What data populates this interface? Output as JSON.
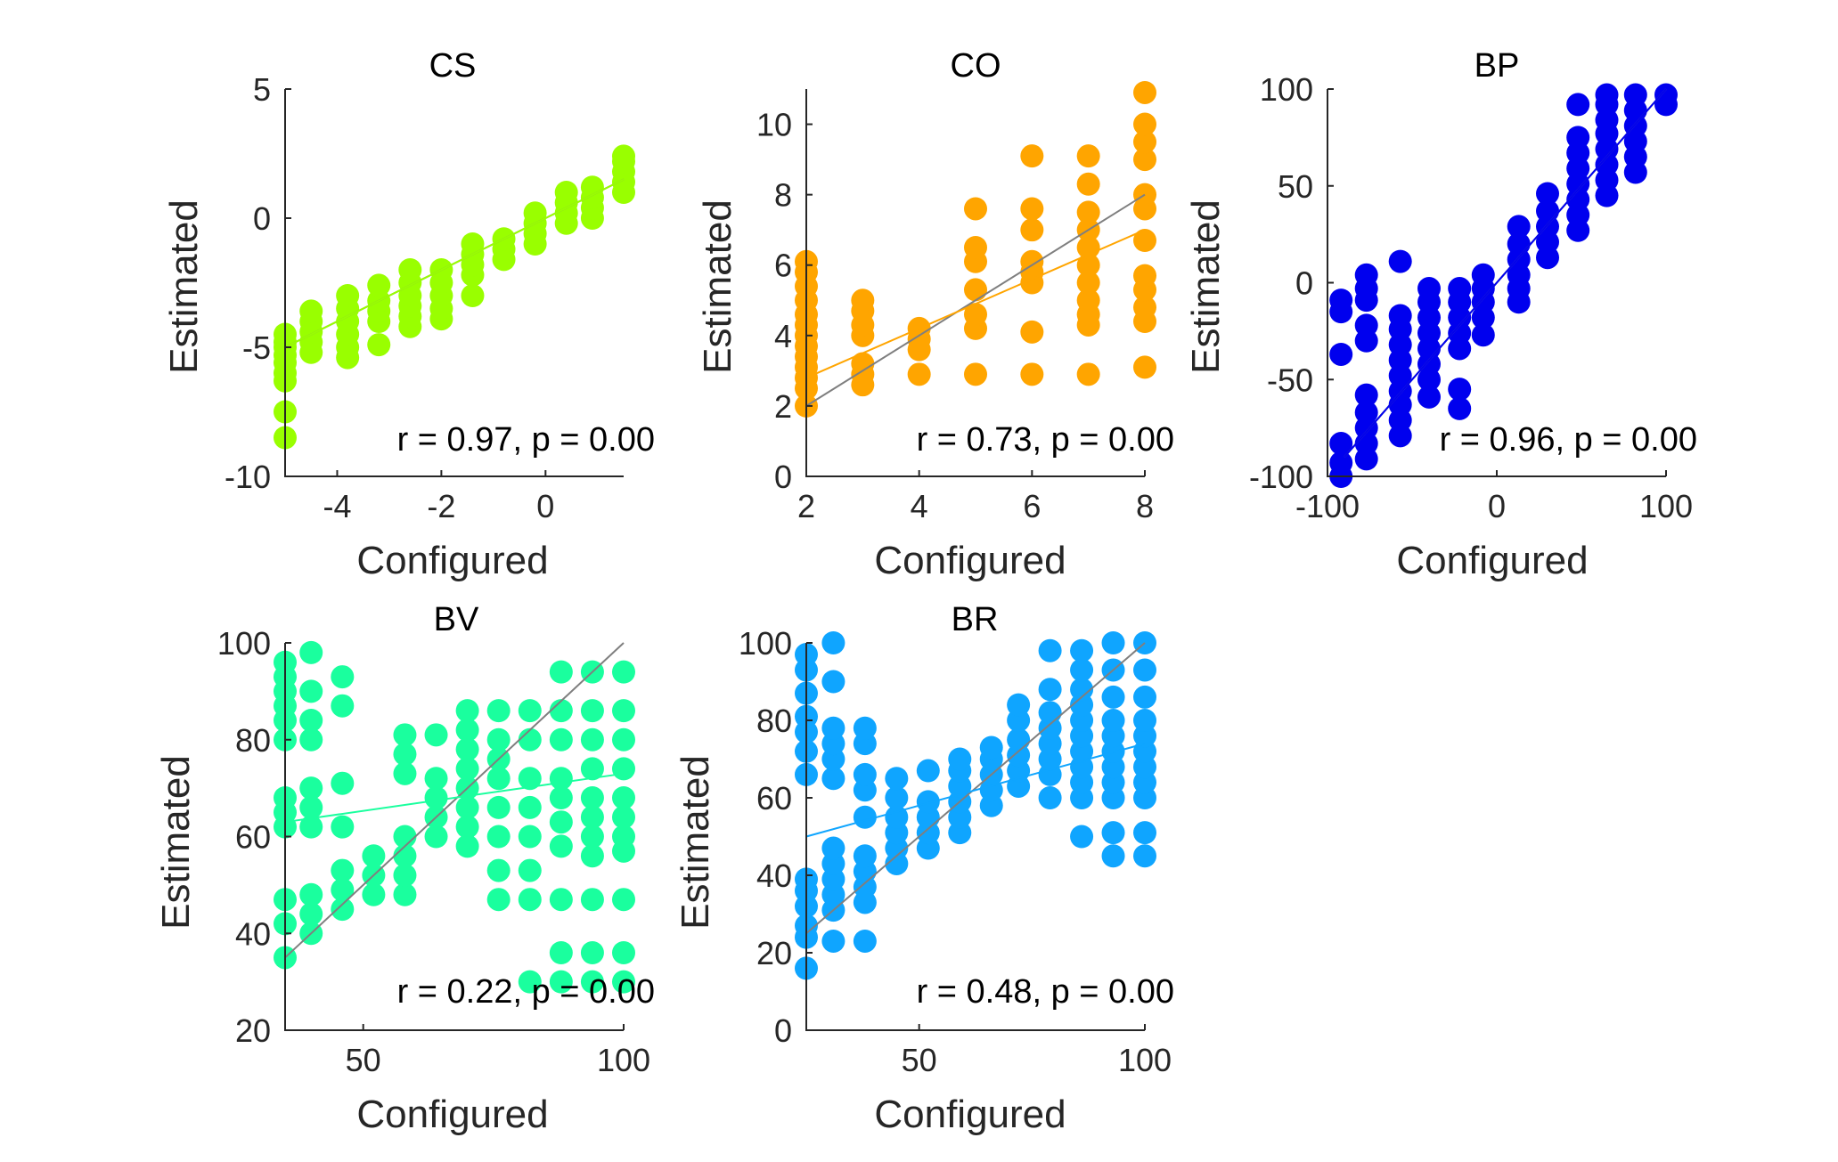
{
  "chart_data": [
    {
      "type": "scatter",
      "title": "CS",
      "xlabel": "Configured",
      "ylabel": "Estimated",
      "annotation": "r = 0.97, p = 0.00",
      "color": "#99ff00",
      "xlim": [
        -5,
        1.5
      ],
      "ylim": [
        -10,
        5
      ],
      "xticks": [
        -4,
        -2,
        0
      ],
      "yticks": [
        -10,
        -5,
        0,
        5
      ],
      "xtick_labels": [
        "-4",
        "-2",
        "0"
      ],
      "ytick_labels": [
        "-10",
        "-5",
        "0",
        "5"
      ],
      "identity_line": [
        [
          -5,
          -5
        ],
        [
          1.5,
          1.5
        ]
      ],
      "fit_line": [
        [
          -5,
          -5
        ],
        [
          1.5,
          1.5
        ]
      ],
      "groups": [
        {
          "x": -5,
          "y": [
            -6.3,
            -6,
            -5.6,
            -5.3,
            -5,
            -4.8,
            -4.5,
            -7.5,
            -8.5
          ]
        },
        {
          "x": -4.5,
          "y": [
            -5.2,
            -4.8,
            -4.4,
            -4,
            -3.6
          ]
        },
        {
          "x": -3.8,
          "y": [
            -5.4,
            -5,
            -4.5,
            -4,
            -3.5,
            -3
          ]
        },
        {
          "x": -3.2,
          "y": [
            -4.9,
            -4,
            -3.6,
            -3.2,
            -2.6
          ]
        },
        {
          "x": -2.6,
          "y": [
            -4.2,
            -3.8,
            -3.4,
            -3,
            -2.5,
            -2
          ]
        },
        {
          "x": -2,
          "y": [
            -3.9,
            -3.5,
            -3,
            -2.5,
            -2
          ]
        },
        {
          "x": -1.4,
          "y": [
            -3,
            -2.2,
            -1.8,
            -1.4,
            -1
          ]
        },
        {
          "x": -0.8,
          "y": [
            -1.6,
            -1.2,
            -0.8
          ]
        },
        {
          "x": -0.2,
          "y": [
            -1,
            -0.6,
            -0.2,
            0.2
          ]
        },
        {
          "x": 0.4,
          "y": [
            -0.2,
            0.2,
            0.6,
            1
          ]
        },
        {
          "x": 0.9,
          "y": [
            0,
            0.4,
            0.8,
            1.2
          ]
        },
        {
          "x": 1.5,
          "y": [
            1,
            1.4,
            1.8,
            2.2,
            2.4
          ]
        }
      ]
    },
    {
      "type": "scatter",
      "title": "CO",
      "xlabel": "Configured",
      "ylabel": "Estimated",
      "annotation": "r = 0.73, p = 0.00",
      "color": "#ffa500",
      "xlim": [
        2,
        8
      ],
      "ylim": [
        0,
        11
      ],
      "xticks": [
        2,
        4,
        6,
        8
      ],
      "yticks": [
        0,
        2,
        4,
        6,
        8,
        10
      ],
      "xtick_labels": [
        "2",
        "4",
        "6",
        "8"
      ],
      "ytick_labels": [
        "0",
        "2",
        "4",
        "6",
        "8",
        "10"
      ],
      "identity_line": [
        [
          2,
          2
        ],
        [
          8,
          8
        ]
      ],
      "fit_line": [
        [
          2,
          2.8
        ],
        [
          8,
          7
        ]
      ],
      "groups": [
        {
          "x": 2,
          "y": [
            2,
            2.5,
            2.8,
            3.1,
            3.4,
            3.7,
            4,
            4.3,
            4.6,
            5,
            5.4,
            5.8,
            6.1
          ]
        },
        {
          "x": 3,
          "y": [
            2.6,
            2.9,
            3.2,
            4,
            4.3,
            4.7,
            5
          ]
        },
        {
          "x": 4,
          "y": [
            2.9,
            3.6,
            3.9,
            4.2
          ]
        },
        {
          "x": 5,
          "y": [
            2.9,
            4.2,
            4.6,
            5.3,
            6.1,
            6.5,
            7.6
          ]
        },
        {
          "x": 6,
          "y": [
            2.9,
            4.1,
            5.5,
            5.8,
            6.1,
            7,
            7.6,
            9.1
          ]
        },
        {
          "x": 7,
          "y": [
            2.9,
            4.3,
            4.6,
            5,
            5.5,
            6,
            6.5,
            7,
            7.5,
            8.3,
            9.1
          ]
        },
        {
          "x": 8,
          "y": [
            3.1,
            4.4,
            4.8,
            5.3,
            5.7,
            6.7,
            7.6,
            8,
            9,
            9.5,
            10,
            10.9
          ]
        }
      ]
    },
    {
      "type": "scatter",
      "title": "BP",
      "xlabel": "Configured",
      "ylabel": "",
      "annotation": "r = 0.96, p = 0.00",
      "color": "#0000ee",
      "xlim": [
        -100,
        100
      ],
      "ylim": [
        -100,
        100
      ],
      "xticks": [
        -100,
        0,
        100
      ],
      "yticks": [
        -100,
        -50,
        0,
        50,
        100
      ],
      "xtick_labels": [
        "-100",
        "0",
        "100"
      ],
      "ytick_labels": [
        "-100",
        "-50",
        "0",
        "50",
        "100"
      ],
      "identity_line": [
        [
          -90,
          -90
        ],
        [
          100,
          100
        ]
      ],
      "fit_line": [
        [
          -90,
          -90
        ],
        [
          100,
          100
        ]
      ],
      "groups": [
        {
          "x": -92,
          "y": [
            -100,
            -93,
            -83,
            -37,
            -15,
            -9
          ]
        },
        {
          "x": -77,
          "y": [
            -91,
            -83,
            -75,
            -67,
            -58,
            -30,
            -22,
            -9,
            -3,
            4
          ]
        },
        {
          "x": -57,
          "y": [
            -79,
            -71,
            -63,
            -56,
            -48,
            -40,
            -32,
            -24,
            -17,
            11
          ]
        },
        {
          "x": -40,
          "y": [
            -59,
            -50,
            -42,
            -34,
            -26,
            -18,
            -10,
            -3
          ]
        },
        {
          "x": -22,
          "y": [
            -65,
            -55,
            -34,
            -26,
            -18,
            -10,
            -3
          ]
        },
        {
          "x": -8,
          "y": [
            -27,
            -18,
            -10,
            -3,
            4
          ]
        },
        {
          "x": 13,
          "y": [
            -10,
            -3,
            4,
            12,
            20,
            29
          ]
        },
        {
          "x": 30,
          "y": [
            13,
            21,
            29,
            37,
            46
          ]
        },
        {
          "x": 48,
          "y": [
            27,
            35,
            43,
            51,
            59,
            67,
            75,
            92
          ]
        },
        {
          "x": 65,
          "y": [
            45,
            53,
            61,
            69,
            77,
            84,
            92,
            97
          ]
        },
        {
          "x": 82,
          "y": [
            57,
            65,
            73,
            81,
            89,
            97
          ]
        },
        {
          "x": 100,
          "y": [
            92,
            97
          ]
        }
      ]
    },
    {
      "type": "scatter",
      "title": "BV",
      "xlabel": "Configured",
      "ylabel": "Estimated",
      "annotation": "r = 0.22, p = 0.00",
      "color": "#1aff9e",
      "xlim": [
        35,
        100
      ],
      "ylim": [
        20,
        100
      ],
      "xticks": [
        50,
        100
      ],
      "yticks": [
        20,
        40,
        60,
        80,
        100
      ],
      "xtick_labels": [
        "50",
        "100"
      ],
      "ytick_labels": [
        "20",
        "40",
        "60",
        "80",
        "100"
      ],
      "identity_line": [
        [
          35,
          35
        ],
        [
          100,
          100
        ]
      ],
      "fit_line": [
        [
          35,
          63
        ],
        [
          100,
          73
        ]
      ],
      "groups": [
        {
          "x": 35,
          "y": [
            35,
            42,
            47,
            62,
            65,
            68,
            80,
            84,
            87,
            90,
            93,
            96
          ]
        },
        {
          "x": 40,
          "y": [
            40,
            44,
            48,
            62,
            66,
            70,
            80,
            84,
            90,
            98
          ]
        },
        {
          "x": 46,
          "y": [
            45,
            49,
            53,
            62,
            71,
            87,
            93
          ]
        },
        {
          "x": 52,
          "y": [
            48,
            52,
            56
          ]
        },
        {
          "x": 58,
          "y": [
            48,
            52,
            56,
            60,
            73,
            77,
            81
          ]
        },
        {
          "x": 64,
          "y": [
            60,
            64,
            68,
            72,
            81
          ]
        },
        {
          "x": 70,
          "y": [
            58,
            62,
            66,
            70,
            74,
            78,
            82,
            86
          ]
        },
        {
          "x": 76,
          "y": [
            47,
            53,
            60,
            66,
            72,
            76,
            80,
            86
          ]
        },
        {
          "x": 82,
          "y": [
            30,
            47,
            53,
            60,
            66,
            72,
            80,
            86
          ]
        },
        {
          "x": 88,
          "y": [
            30,
            36,
            47,
            58,
            63,
            68,
            72,
            80,
            86,
            94
          ]
        },
        {
          "x": 94,
          "y": [
            30,
            36,
            47,
            56,
            60,
            64,
            68,
            74,
            80,
            86,
            94
          ]
        },
        {
          "x": 100,
          "y": [
            30,
            36,
            47,
            57,
            60,
            64,
            68,
            74,
            80,
            86,
            94
          ]
        }
      ]
    },
    {
      "type": "scatter",
      "title": "BR",
      "xlabel": "Configured",
      "ylabel": "Estimated",
      "annotation": "r = 0.48, p = 0.00",
      "color": "#0fa5ff",
      "xlim": [
        25,
        100
      ],
      "ylim": [
        0,
        100
      ],
      "xticks": [
        50,
        100
      ],
      "yticks": [
        0,
        20,
        40,
        60,
        80,
        100
      ],
      "xtick_labels": [
        "50",
        "100"
      ],
      "ytick_labels": [
        "0",
        "20",
        "40",
        "60",
        "80",
        "100"
      ],
      "identity_line": [
        [
          25,
          25
        ],
        [
          100,
          100
        ]
      ],
      "fit_line": [
        [
          25,
          50
        ],
        [
          100,
          74
        ]
      ],
      "groups": [
        {
          "x": 25,
          "y": [
            16,
            24,
            27,
            32,
            36,
            39,
            66,
            72,
            77,
            81,
            87,
            93,
            97
          ]
        },
        {
          "x": 31,
          "y": [
            23,
            31,
            35,
            39,
            43,
            47,
            65,
            70,
            74,
            78,
            90,
            100
          ]
        },
        {
          "x": 38,
          "y": [
            23,
            33,
            37,
            41,
            45,
            55,
            62,
            66,
            74,
            78
          ]
        },
        {
          "x": 45,
          "y": [
            43,
            47,
            51,
            55,
            60,
            65
          ]
        },
        {
          "x": 52,
          "y": [
            47,
            51,
            55,
            59,
            67
          ]
        },
        {
          "x": 59,
          "y": [
            51,
            55,
            59,
            63,
            67,
            70
          ]
        },
        {
          "x": 66,
          "y": [
            58,
            62,
            66,
            70,
            73
          ]
        },
        {
          "x": 72,
          "y": [
            63,
            67,
            71,
            75,
            80,
            84
          ]
        },
        {
          "x": 79,
          "y": [
            60,
            66,
            70,
            74,
            78,
            82,
            88,
            98
          ]
        },
        {
          "x": 86,
          "y": [
            50,
            60,
            64,
            68,
            72,
            76,
            80,
            84,
            88,
            93,
            98
          ]
        },
        {
          "x": 93,
          "y": [
            45,
            51,
            60,
            64,
            68,
            72,
            76,
            80,
            86,
            93,
            100
          ]
        },
        {
          "x": 100,
          "y": [
            45,
            51,
            60,
            64,
            68,
            72,
            76,
            80,
            86,
            93,
            100
          ]
        }
      ]
    }
  ]
}
